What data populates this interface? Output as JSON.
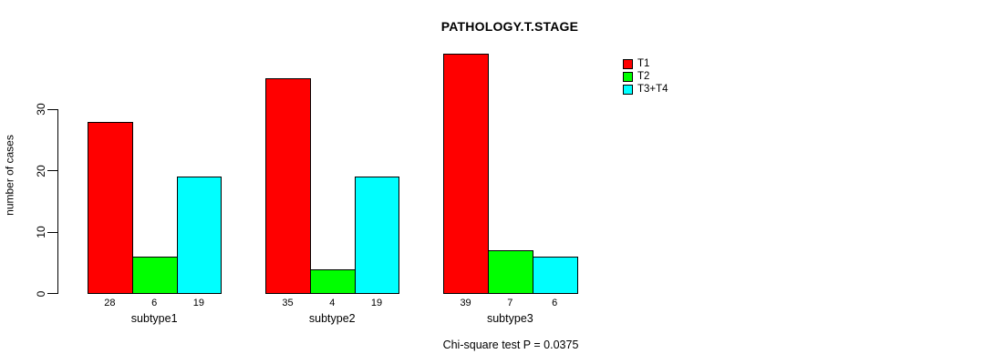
{
  "chart_data": {
    "type": "bar",
    "title": "PATHOLOGY.T.STAGE",
    "xlabel": "",
    "ylabel": "number of cases",
    "categories": [
      "subtype1",
      "subtype2",
      "subtype3"
    ],
    "series": [
      {
        "name": "T1",
        "color": "#ff0000",
        "values": [
          28,
          35,
          39
        ]
      },
      {
        "name": "T2",
        "color": "#00ff00",
        "values": [
          6,
          4,
          7
        ]
      },
      {
        "name": "T3+T4",
        "color": "#00ffff",
        "values": [
          19,
          19,
          6
        ]
      }
    ],
    "bar_value_labels": [
      [
        "28",
        "6",
        "19"
      ],
      [
        "35",
        "4",
        "19"
      ],
      [
        "39",
        "7",
        "6"
      ]
    ],
    "yticks": [
      0,
      10,
      20,
      30
    ],
    "ylim": [
      0,
      40
    ],
    "grid": false,
    "legend_position": "top-right",
    "legend_entries": [
      "T1",
      "T2",
      "T3+T4"
    ],
    "annotation": "Chi-square test P = 0.0375",
    "colors": {
      "bar_border": "#000000",
      "axis": "#000000",
      "background": "#ffffff"
    }
  }
}
